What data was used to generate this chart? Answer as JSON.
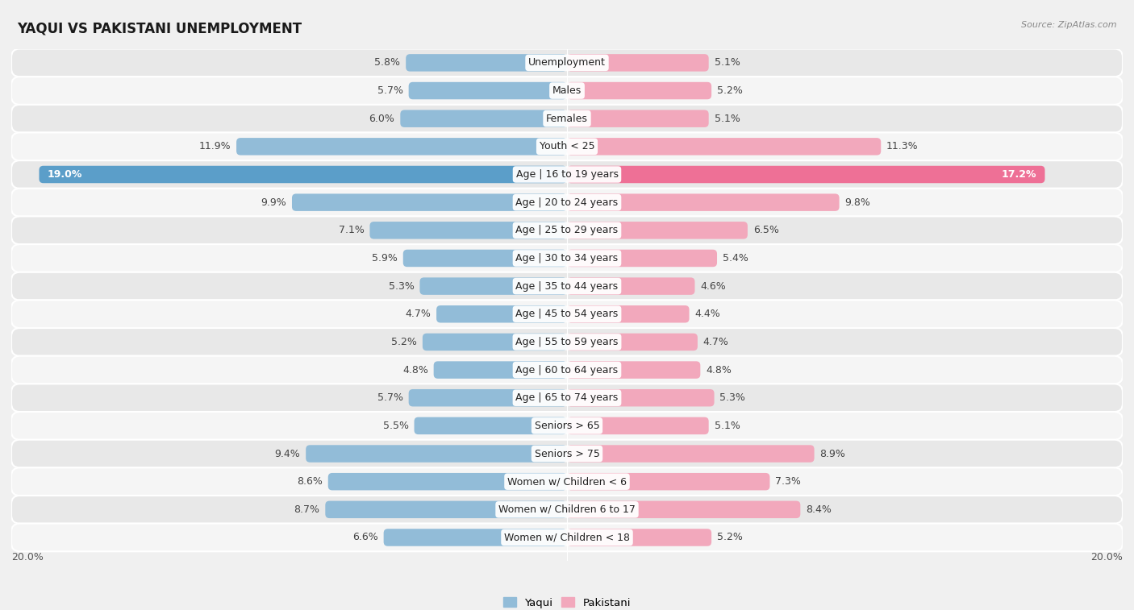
{
  "title": "YAQUI VS PAKISTANI UNEMPLOYMENT",
  "source": "Source: ZipAtlas.com",
  "categories": [
    "Unemployment",
    "Males",
    "Females",
    "Youth < 25",
    "Age | 16 to 19 years",
    "Age | 20 to 24 years",
    "Age | 25 to 29 years",
    "Age | 30 to 34 years",
    "Age | 35 to 44 years",
    "Age | 45 to 54 years",
    "Age | 55 to 59 years",
    "Age | 60 to 64 years",
    "Age | 65 to 74 years",
    "Seniors > 65",
    "Seniors > 75",
    "Women w/ Children < 6",
    "Women w/ Children 6 to 17",
    "Women w/ Children < 18"
  ],
  "yaqui_values": [
    5.8,
    5.7,
    6.0,
    11.9,
    19.0,
    9.9,
    7.1,
    5.9,
    5.3,
    4.7,
    5.2,
    4.8,
    5.7,
    5.5,
    9.4,
    8.6,
    8.7,
    6.6
  ],
  "pakistani_values": [
    5.1,
    5.2,
    5.1,
    11.3,
    17.2,
    9.8,
    6.5,
    5.4,
    4.6,
    4.4,
    4.7,
    4.8,
    5.3,
    5.1,
    8.9,
    7.3,
    8.4,
    5.2
  ],
  "yaqui_color": "#92bcd8",
  "pakistani_color": "#f2a8bc",
  "yaqui_highlight_color": "#5b9ec9",
  "pakistani_highlight_color": "#ee7096",
  "bar_height": 0.62,
  "xlim": 20.0,
  "legend_yaqui": "Yaqui",
  "legend_pakistani": "Pakistani",
  "bg_color": "#f0f0f0",
  "row_colors": [
    "#e8e8e8",
    "#f5f5f5"
  ],
  "label_color": "#444444",
  "highlight_label_color": "#ffffff",
  "value_fontsize": 9,
  "cat_fontsize": 9
}
